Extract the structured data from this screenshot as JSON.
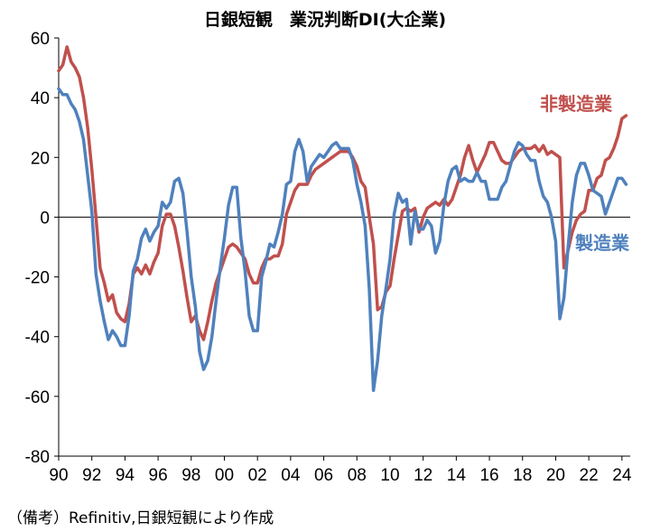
{
  "chart_data": {
    "type": "line",
    "title": "日銀短観　業況判断DI(大企業)",
    "xlabel": "",
    "ylabel": "",
    "xlim": [
      1990,
      2024.5
    ],
    "ylim": [
      -80,
      60
    ],
    "yticks": [
      60,
      40,
      20,
      0,
      -20,
      -40,
      -60,
      -80
    ],
    "xticks": [
      {
        "value": 1990,
        "label": "90"
      },
      {
        "value": 1992,
        "label": "92"
      },
      {
        "value": 1994,
        "label": "94"
      },
      {
        "value": 1996,
        "label": "96"
      },
      {
        "value": 1998,
        "label": "98"
      },
      {
        "value": 2000,
        "label": "00"
      },
      {
        "value": 2002,
        "label": "02"
      },
      {
        "value": 2004,
        "label": "04"
      },
      {
        "value": 2006,
        "label": "06"
      },
      {
        "value": 2008,
        "label": "08"
      },
      {
        "value": 2010,
        "label": "10"
      },
      {
        "value": 2012,
        "label": "12"
      },
      {
        "value": 2014,
        "label": "14"
      },
      {
        "value": 2016,
        "label": "16"
      },
      {
        "value": 2018,
        "label": "18"
      },
      {
        "value": 2020,
        "label": "20"
      },
      {
        "value": 2022,
        "label": "22"
      },
      {
        "value": 2024,
        "label": "24"
      }
    ],
    "grid": false,
    "legend": "inline labels",
    "series": [
      {
        "name": "非製造業",
        "color": "#c0504d",
        "points": [
          [
            1990.0,
            49
          ],
          [
            1990.25,
            51
          ],
          [
            1990.5,
            57
          ],
          [
            1990.75,
            52
          ],
          [
            1991.0,
            50
          ],
          [
            1991.25,
            47
          ],
          [
            1991.5,
            40
          ],
          [
            1991.75,
            30
          ],
          [
            1992.0,
            16
          ],
          [
            1992.25,
            0
          ],
          [
            1992.5,
            -17
          ],
          [
            1992.75,
            -22
          ],
          [
            1993.0,
            -28
          ],
          [
            1993.25,
            -26
          ],
          [
            1993.5,
            -32
          ],
          [
            1993.75,
            -34
          ],
          [
            1994.0,
            -35
          ],
          [
            1994.25,
            -29
          ],
          [
            1994.5,
            -19
          ],
          [
            1994.75,
            -17
          ],
          [
            1995.0,
            -19
          ],
          [
            1995.25,
            -16
          ],
          [
            1995.5,
            -19
          ],
          [
            1995.75,
            -15
          ],
          [
            1996.0,
            -12
          ],
          [
            1996.25,
            -3
          ],
          [
            1996.5,
            1
          ],
          [
            1996.75,
            1
          ],
          [
            1997.0,
            -3
          ],
          [
            1997.25,
            -10
          ],
          [
            1997.5,
            -18
          ],
          [
            1997.75,
            -27
          ],
          [
            1998.0,
            -35
          ],
          [
            1998.25,
            -33
          ],
          [
            1998.5,
            -38
          ],
          [
            1998.75,
            -41
          ],
          [
            1999.0,
            -35
          ],
          [
            1999.25,
            -28
          ],
          [
            1999.5,
            -22
          ],
          [
            1999.75,
            -18
          ],
          [
            2000.0,
            -14
          ],
          [
            2000.25,
            -10
          ],
          [
            2000.5,
            -9
          ],
          [
            2000.75,
            -10
          ],
          [
            2001.0,
            -12
          ],
          [
            2001.25,
            -14
          ],
          [
            2001.5,
            -19
          ],
          [
            2001.75,
            -22
          ],
          [
            2002.0,
            -22
          ],
          [
            2002.25,
            -17
          ],
          [
            2002.5,
            -14
          ],
          [
            2002.75,
            -14
          ],
          [
            2003.0,
            -13
          ],
          [
            2003.25,
            -13
          ],
          [
            2003.5,
            -9
          ],
          [
            2003.75,
            1
          ],
          [
            2004.0,
            5
          ],
          [
            2004.25,
            9
          ],
          [
            2004.5,
            11
          ],
          [
            2004.75,
            11
          ],
          [
            2005.0,
            11
          ],
          [
            2005.25,
            14
          ],
          [
            2005.5,
            16
          ],
          [
            2005.75,
            17
          ],
          [
            2006.0,
            18
          ],
          [
            2006.25,
            19
          ],
          [
            2006.5,
            20
          ],
          [
            2006.75,
            21
          ],
          [
            2007.0,
            22
          ],
          [
            2007.25,
            22
          ],
          [
            2007.5,
            22
          ],
          [
            2007.75,
            20
          ],
          [
            2008.0,
            17
          ],
          [
            2008.25,
            12
          ],
          [
            2008.5,
            10
          ],
          [
            2008.75,
            0
          ],
          [
            2009.0,
            -9
          ],
          [
            2009.25,
            -31
          ],
          [
            2009.5,
            -30
          ],
          [
            2009.75,
            -25
          ],
          [
            2010.0,
            -23
          ],
          [
            2010.25,
            -14
          ],
          [
            2010.5,
            -6
          ],
          [
            2010.75,
            2
          ],
          [
            2011.0,
            3
          ],
          [
            2011.25,
            2
          ],
          [
            2011.5,
            3
          ],
          [
            2011.75,
            -5
          ],
          [
            2012.0,
            0
          ],
          [
            2012.25,
            3
          ],
          [
            2012.5,
            4
          ],
          [
            2012.75,
            5
          ],
          [
            2013.0,
            4
          ],
          [
            2013.25,
            6
          ],
          [
            2013.5,
            4
          ],
          [
            2013.75,
            6
          ],
          [
            2014.0,
            10
          ],
          [
            2014.25,
            14
          ],
          [
            2014.5,
            20
          ],
          [
            2014.75,
            24
          ],
          [
            2015.0,
            19
          ],
          [
            2015.25,
            15
          ],
          [
            2015.5,
            18
          ],
          [
            2015.75,
            21
          ],
          [
            2016.0,
            25
          ],
          [
            2016.25,
            25
          ],
          [
            2016.5,
            22
          ],
          [
            2016.75,
            19
          ],
          [
            2017.0,
            18
          ],
          [
            2017.25,
            18
          ],
          [
            2017.5,
            20
          ],
          [
            2017.75,
            22
          ],
          [
            2018.0,
            23
          ],
          [
            2018.25,
            23
          ],
          [
            2018.5,
            23
          ],
          [
            2018.75,
            24
          ],
          [
            2019.0,
            22
          ],
          [
            2019.25,
            24
          ],
          [
            2019.5,
            21
          ],
          [
            2019.75,
            22
          ],
          [
            2020.0,
            21
          ],
          [
            2020.25,
            20
          ],
          [
            2020.5,
            -17
          ],
          [
            2020.75,
            -11
          ],
          [
            2021.0,
            -5
          ],
          [
            2021.25,
            -1
          ],
          [
            2021.5,
            1
          ],
          [
            2021.75,
            2
          ],
          [
            2022.0,
            9
          ],
          [
            2022.25,
            9
          ],
          [
            2022.5,
            13
          ],
          [
            2022.75,
            14
          ],
          [
            2023.0,
            19
          ],
          [
            2023.25,
            20
          ],
          [
            2023.5,
            23
          ],
          [
            2023.75,
            27
          ],
          [
            2024.0,
            33
          ],
          [
            2024.25,
            34
          ]
        ]
      },
      {
        "name": "製造業",
        "color": "#4f81bd",
        "points": [
          [
            1990.0,
            43
          ],
          [
            1990.25,
            41
          ],
          [
            1990.5,
            41
          ],
          [
            1990.75,
            38
          ],
          [
            1991.0,
            36
          ],
          [
            1991.25,
            32
          ],
          [
            1991.5,
            26
          ],
          [
            1991.75,
            14
          ],
          [
            1992.0,
            2
          ],
          [
            1992.25,
            -19
          ],
          [
            1992.5,
            -28
          ],
          [
            1992.75,
            -35
          ],
          [
            1993.0,
            -41
          ],
          [
            1993.25,
            -38
          ],
          [
            1993.5,
            -40
          ],
          [
            1993.75,
            -43
          ],
          [
            1994.0,
            -43
          ],
          [
            1994.25,
            -33
          ],
          [
            1994.5,
            -18
          ],
          [
            1994.75,
            -14
          ],
          [
            1995.0,
            -7
          ],
          [
            1995.25,
            -4
          ],
          [
            1995.5,
            -8
          ],
          [
            1995.75,
            -5
          ],
          [
            1996.0,
            -3
          ],
          [
            1996.25,
            5
          ],
          [
            1996.5,
            3
          ],
          [
            1996.75,
            5
          ],
          [
            1997.0,
            12
          ],
          [
            1997.25,
            13
          ],
          [
            1997.5,
            8
          ],
          [
            1997.75,
            -5
          ],
          [
            1998.0,
            -20
          ],
          [
            1998.25,
            -30
          ],
          [
            1998.5,
            -45
          ],
          [
            1998.75,
            -51
          ],
          [
            1999.0,
            -48
          ],
          [
            1999.25,
            -40
          ],
          [
            1999.5,
            -28
          ],
          [
            1999.75,
            -17
          ],
          [
            2000.0,
            -7
          ],
          [
            2000.25,
            4
          ],
          [
            2000.5,
            10
          ],
          [
            2000.75,
            10
          ],
          [
            2001.0,
            -7
          ],
          [
            2001.25,
            -18
          ],
          [
            2001.5,
            -33
          ],
          [
            2001.75,
            -38
          ],
          [
            2002.0,
            -38
          ],
          [
            2002.25,
            -20
          ],
          [
            2002.5,
            -15
          ],
          [
            2002.75,
            -9
          ],
          [
            2003.0,
            -10
          ],
          [
            2003.25,
            -5
          ],
          [
            2003.5,
            1
          ],
          [
            2003.75,
            11
          ],
          [
            2004.0,
            12
          ],
          [
            2004.25,
            22
          ],
          [
            2004.5,
            26
          ],
          [
            2004.75,
            22
          ],
          [
            2005.0,
            12
          ],
          [
            2005.25,
            17
          ],
          [
            2005.5,
            19
          ],
          [
            2005.75,
            21
          ],
          [
            2006.0,
            20
          ],
          [
            2006.25,
            22
          ],
          [
            2006.5,
            24
          ],
          [
            2006.75,
            25
          ],
          [
            2007.0,
            23
          ],
          [
            2007.25,
            23
          ],
          [
            2007.5,
            23
          ],
          [
            2007.75,
            19
          ],
          [
            2008.0,
            11
          ],
          [
            2008.25,
            5
          ],
          [
            2008.5,
            -3
          ],
          [
            2008.75,
            -24
          ],
          [
            2009.0,
            -58
          ],
          [
            2009.25,
            -48
          ],
          [
            2009.5,
            -33
          ],
          [
            2009.75,
            -24
          ],
          [
            2010.0,
            -14
          ],
          [
            2010.25,
            1
          ],
          [
            2010.5,
            8
          ],
          [
            2010.75,
            5
          ],
          [
            2011.0,
            6
          ],
          [
            2011.25,
            -9
          ],
          [
            2011.5,
            2
          ],
          [
            2011.75,
            -4
          ],
          [
            2012.0,
            -4
          ],
          [
            2012.25,
            -1
          ],
          [
            2012.5,
            -3
          ],
          [
            2012.75,
            -12
          ],
          [
            2013.0,
            -8
          ],
          [
            2013.25,
            4
          ],
          [
            2013.5,
            12
          ],
          [
            2013.75,
            16
          ],
          [
            2014.0,
            17
          ],
          [
            2014.25,
            12
          ],
          [
            2014.5,
            13
          ],
          [
            2014.75,
            12
          ],
          [
            2015.0,
            12
          ],
          [
            2015.25,
            15
          ],
          [
            2015.5,
            12
          ],
          [
            2015.75,
            12
          ],
          [
            2016.0,
            6
          ],
          [
            2016.25,
            6
          ],
          [
            2016.5,
            6
          ],
          [
            2016.75,
            10
          ],
          [
            2017.0,
            12
          ],
          [
            2017.25,
            17
          ],
          [
            2017.5,
            22
          ],
          [
            2017.75,
            25
          ],
          [
            2018.0,
            24
          ],
          [
            2018.25,
            21
          ],
          [
            2018.5,
            19
          ],
          [
            2018.75,
            19
          ],
          [
            2019.0,
            12
          ],
          [
            2019.25,
            7
          ],
          [
            2019.5,
            5
          ],
          [
            2019.75,
            0
          ],
          [
            2020.0,
            -8
          ],
          [
            2020.25,
            -34
          ],
          [
            2020.5,
            -27
          ],
          [
            2020.75,
            -10
          ],
          [
            2021.0,
            5
          ],
          [
            2021.25,
            14
          ],
          [
            2021.5,
            18
          ],
          [
            2021.75,
            18
          ],
          [
            2022.0,
            14
          ],
          [
            2022.25,
            9
          ],
          [
            2022.5,
            8
          ],
          [
            2022.75,
            7
          ],
          [
            2023.0,
            1
          ],
          [
            2023.25,
            5
          ],
          [
            2023.5,
            9
          ],
          [
            2023.75,
            13
          ],
          [
            2024.0,
            13
          ],
          [
            2024.25,
            11
          ]
        ]
      }
    ]
  },
  "source_note": "（備考）Refinitiv,日銀短観により作成"
}
